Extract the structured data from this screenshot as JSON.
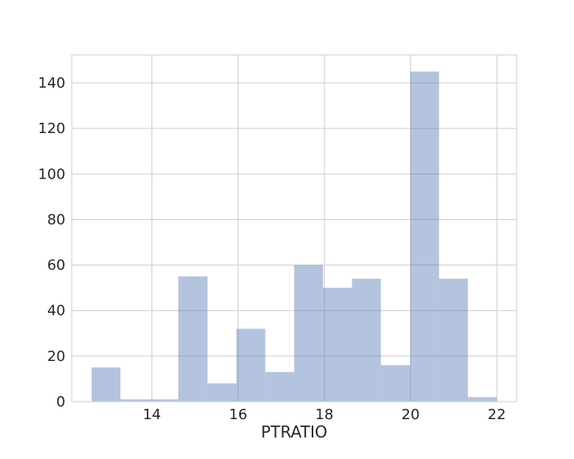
{
  "chart_data": {
    "type": "bar",
    "subtype": "histogram",
    "title": "",
    "xlabel": "PTRATIO",
    "ylabel": "",
    "xlim": [
      12.14,
      22.46
    ],
    "ylim": [
      0,
      152.25
    ],
    "x_ticks": [
      14,
      16,
      18,
      20,
      22
    ],
    "y_ticks": [
      0,
      20,
      40,
      60,
      80,
      100,
      120,
      140
    ],
    "grid": true,
    "bar_color": "#4c72b0",
    "bar_opacity": 0.42,
    "bins": [
      {
        "x0": 12.6,
        "x1": 13.27,
        "count": 15
      },
      {
        "x0": 13.27,
        "x1": 13.94,
        "count": 1
      },
      {
        "x0": 13.94,
        "x1": 14.61,
        "count": 1
      },
      {
        "x0": 14.61,
        "x1": 15.29,
        "count": 55
      },
      {
        "x0": 15.29,
        "x1": 15.96,
        "count": 8
      },
      {
        "x0": 15.96,
        "x1": 16.63,
        "count": 32
      },
      {
        "x0": 16.63,
        "x1": 17.3,
        "count": 13
      },
      {
        "x0": 17.3,
        "x1": 17.97,
        "count": 60
      },
      {
        "x0": 17.97,
        "x1": 18.64,
        "count": 50
      },
      {
        "x0": 18.64,
        "x1": 19.31,
        "count": 54
      },
      {
        "x0": 19.31,
        "x1": 19.99,
        "count": 16
      },
      {
        "x0": 19.99,
        "x1": 20.66,
        "count": 145
      },
      {
        "x0": 20.66,
        "x1": 21.33,
        "count": 54
      },
      {
        "x0": 21.33,
        "x1": 22.0,
        "count": 2
      }
    ]
  }
}
